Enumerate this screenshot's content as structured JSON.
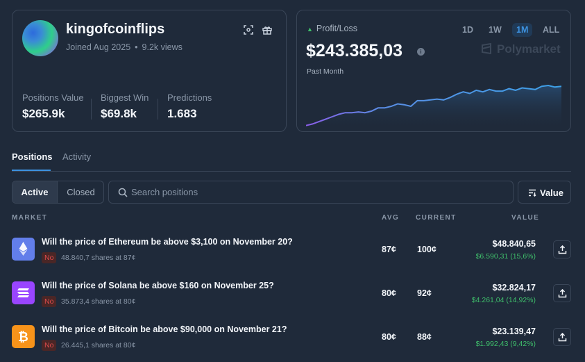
{
  "profile": {
    "username": "kingofcoinflips",
    "joined": "Joined Aug 2025",
    "views": "9.2k views",
    "stats": [
      {
        "label": "Positions Value",
        "value": "$265.9k"
      },
      {
        "label": "Biggest Win",
        "value": "$69.8k"
      },
      {
        "label": "Predictions",
        "value": "1.683"
      }
    ]
  },
  "pnl": {
    "label": "Profit/Loss",
    "value": "$243.385,03",
    "period": "Past Month",
    "ranges": [
      "1D",
      "1W",
      "1M",
      "ALL"
    ],
    "active_range": "1M",
    "brand": "Polymarket",
    "series": [
      0.02,
      0.04,
      0.07,
      0.1,
      0.13,
      0.16,
      0.18,
      0.18,
      0.19,
      0.18,
      0.2,
      0.24,
      0.24,
      0.26,
      0.29,
      0.28,
      0.26,
      0.33,
      0.33,
      0.34,
      0.35,
      0.34,
      0.37,
      0.41,
      0.44,
      0.42,
      0.46,
      0.44,
      0.47,
      0.45,
      0.45,
      0.48,
      0.46,
      0.49,
      0.48,
      0.47,
      0.51,
      0.52,
      0.5,
      0.51
    ]
  },
  "tabs": [
    "Positions",
    "Activity"
  ],
  "toolbar": {
    "segments": [
      "Active",
      "Closed"
    ],
    "search_placeholder": "Search positions",
    "sort_label": "Value"
  },
  "table": {
    "headers": {
      "market": "MARKET",
      "avg": "AVG",
      "current": "CURRENT",
      "value": "VALUE"
    },
    "rows": [
      {
        "coin": "ethereum",
        "coin_color": "#627eea",
        "question": "Will the price of Ethereum be above $3,100 on November 20?",
        "outcome": "No",
        "shares": "48.840,7 shares at 87¢",
        "avg": "87¢",
        "current": "100¢",
        "value": "$48.840,65",
        "pnl": "$6.590,31 (15,6%)"
      },
      {
        "coin": "solana",
        "coin_color": "#9945ff",
        "question": "Will the price of Solana be above $160 on November 25?",
        "outcome": "No",
        "shares": "35.873,4 shares at 80¢",
        "avg": "80¢",
        "current": "92¢",
        "value": "$32.824,17",
        "pnl": "$4.261,04 (14,92%)"
      },
      {
        "coin": "bitcoin",
        "coin_color": "#f7931a",
        "question": "Will the price of Bitcoin be above $90,000 on November 21?",
        "outcome": "No",
        "shares": "26.445,1 shares at 80¢",
        "avg": "80¢",
        "current": "88¢",
        "value": "$23.139,47",
        "pnl": "$1.992,43 (9,42%)"
      }
    ]
  }
}
